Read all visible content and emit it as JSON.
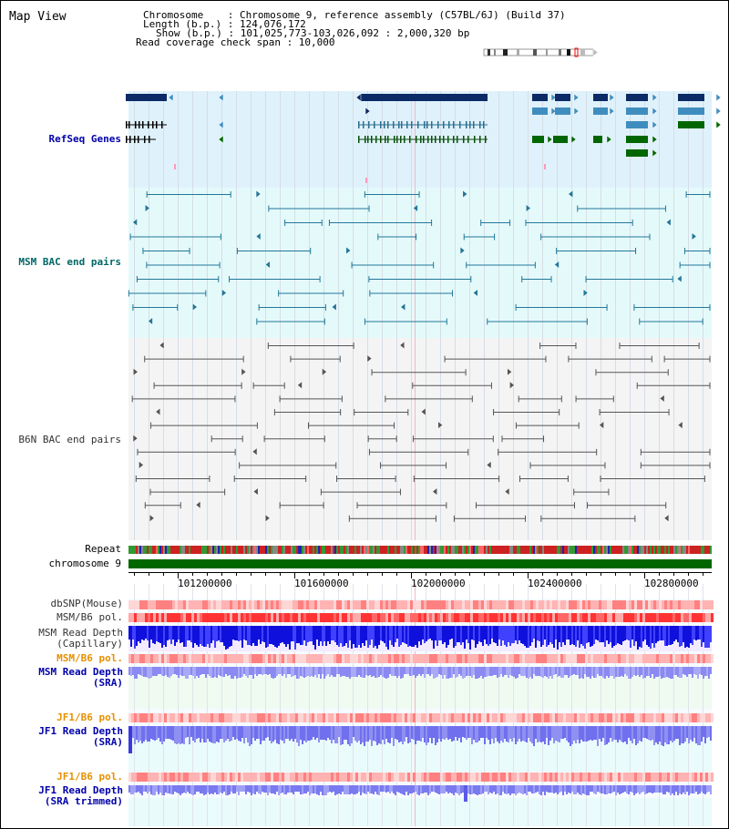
{
  "view_title": "Map View",
  "header": {
    "chromosome": "Chromosome    : Chromosome 9, reference assembly (C57BL/6J) (Build 37)",
    "length": "Length (b.p.) : 124,076,172",
    "show": "Show (b.p.) : 101,025,773-103,026,092 : 2,000,320 bp",
    "read_coverage": "Read coverage check span : 10,000"
  },
  "tracks": {
    "refseq": "RefSeq Genes",
    "msm_bac": "MSM BAC end pairs",
    "b6n_bac": "B6N BAC end pairs",
    "repeat": "Repeat",
    "chromosome": "chromosome 9",
    "dbsnp": "dbSNP(Mouse)",
    "msm_b6_pol_1": "MSM/B6 pol.",
    "msm_read_depth_cap": "MSM Read Depth\n(Capillary)",
    "msm_b6_pol_2": "MSM/B6 pol.",
    "msm_read_depth_sra": "MSM Read Depth\n(SRA)",
    "jf1_b6_pol_1": "JF1/B6 pol.",
    "jf1_read_depth_sra": "JF1 Read Depth\n(SRA)",
    "jf1_b6_pol_2": "JF1/B6 pol.",
    "jf1_read_depth_trim": "JF1 Read Depth\n(SRA trimmed)"
  },
  "ruler": {
    "ticks": [
      "101200000",
      "101600000",
      "102000000",
      "102400000",
      "102800000"
    ]
  },
  "colors": {
    "refseq_bg": "#dff1fb",
    "msm_bg": "#e4fafa",
    "b6n_bg": "#f4f4f4",
    "refseq_dark": "#0b2a66",
    "refseq_mid": "#3f8dbf",
    "refseq_green": "#006600",
    "msm_line": "#227799",
    "b6n_line": "#555555",
    "chromosome_green": "#006600",
    "depth_blue": "#1a1ae6",
    "depth_light": "#7a7af0",
    "pol_red": "#ff3333"
  }
}
